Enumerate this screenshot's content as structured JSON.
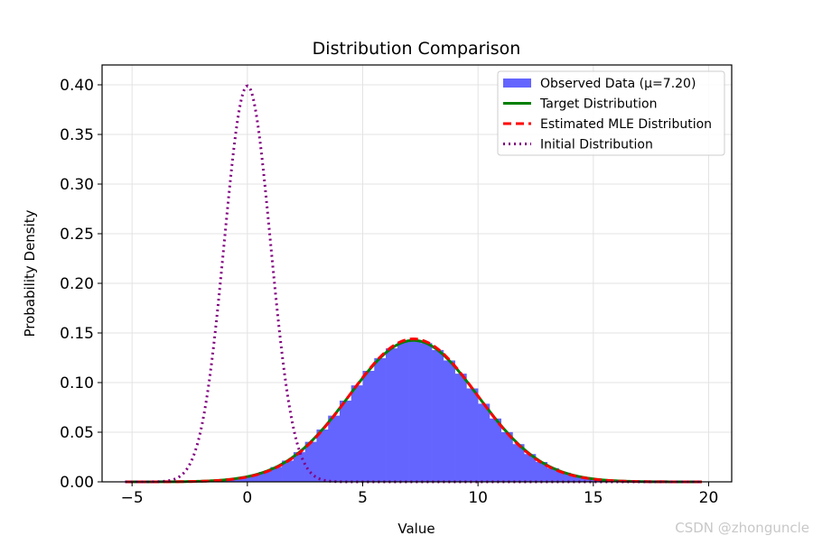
{
  "chart_data": {
    "type": "bar",
    "title": "Distribution Comparison",
    "xlabel": "Value",
    "ylabel": "Probability Density",
    "xlim": [
      -6.3,
      21
    ],
    "ylim": [
      0,
      0.42
    ],
    "xticks": [
      -5,
      0,
      5,
      10,
      15,
      20
    ],
    "yticks": [
      0.0,
      0.05,
      0.1,
      0.15,
      0.2,
      0.25,
      0.3,
      0.35,
      0.4
    ],
    "grid": true,
    "legend_placement": "top-right",
    "histogram": {
      "name": "Observed Data (μ=7.20)",
      "color": "#6464ff",
      "bin_width": 0.5,
      "bin_centers": [
        -0.75,
        -0.25,
        0.25,
        0.75,
        1.25,
        1.75,
        2.25,
        2.75,
        3.25,
        3.75,
        4.25,
        4.75,
        5.25,
        5.75,
        6.25,
        6.75,
        7.25,
        7.75,
        8.25,
        8.75,
        9.25,
        9.75,
        10.25,
        10.75,
        11.25,
        11.75,
        12.25,
        12.75,
        13.25,
        13.75,
        14.25,
        14.75,
        15.25,
        15.75,
        16.25,
        16.75
      ],
      "values": [
        0.0025,
        0.0041,
        0.0065,
        0.01,
        0.0149,
        0.0214,
        0.0299,
        0.0403,
        0.0527,
        0.0667,
        0.0818,
        0.0972,
        0.1118,
        0.1246,
        0.1345,
        0.1407,
        0.1425,
        0.1398,
        0.1328,
        0.1223,
        0.109,
        0.0941,
        0.0787,
        0.0638,
        0.0501,
        0.038,
        0.028,
        0.02,
        0.0138,
        0.0092,
        0.006,
        0.0038,
        0.0023,
        0.0013,
        0.0008,
        0.0004
      ]
    },
    "series": [
      {
        "name": "Target Distribution",
        "type": "line",
        "style": "solid",
        "color": "#008000",
        "mean": 7.2,
        "std": 2.8,
        "x_range": [
          -5.3,
          19.7
        ]
      },
      {
        "name": "Estimated MLE Distribution",
        "type": "line",
        "style": "dashed",
        "color": "#ff0000",
        "mean": 7.2,
        "std": 2.77,
        "x_range": [
          -5.3,
          19.7
        ]
      },
      {
        "name": "Initial Distribution",
        "type": "line",
        "style": "dotted",
        "color": "#800080",
        "mean": 0.0,
        "std": 1.0,
        "x_range": [
          -5.3,
          19.7
        ]
      }
    ]
  },
  "watermark": "CSDN @zhonguncle"
}
